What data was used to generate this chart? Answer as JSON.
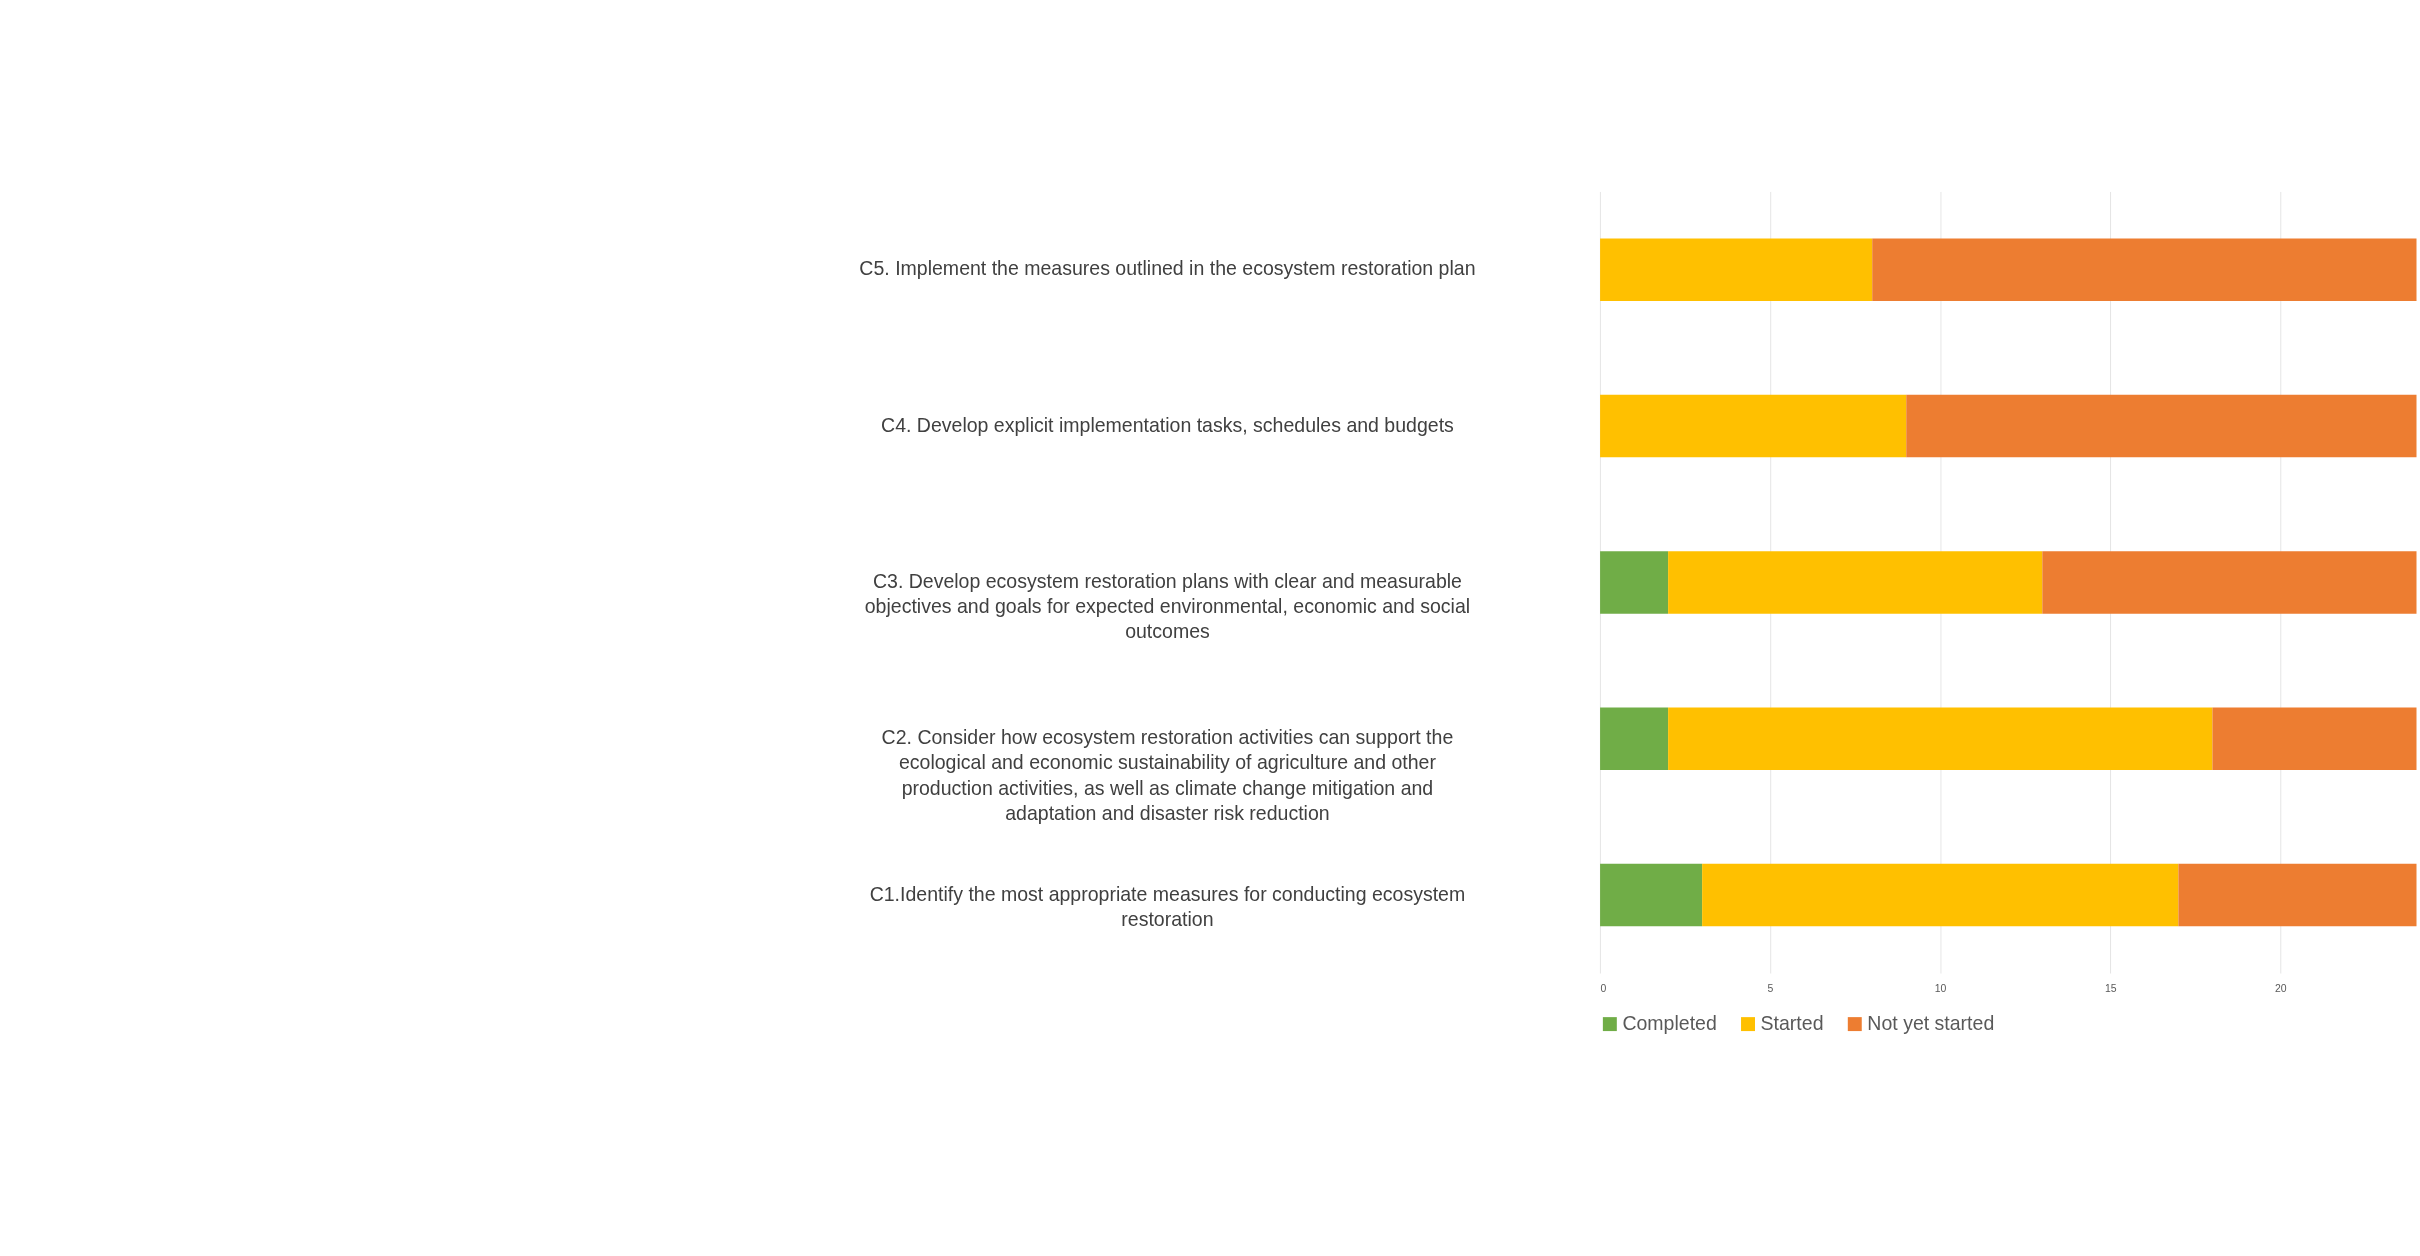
{
  "chart_data": {
    "type": "bar",
    "orientation": "horizontal",
    "stacked": true,
    "categories": [
      "C5. Implement the measures outlined in the ecosystem restoration plan",
      "C4. Develop explicit implementation tasks, schedules and budgets",
      "C3. Develop ecosystem restoration plans with clear and measurable objectives and goals for expected environmental, economic and social outcomes",
      "C2. Consider how ecosystem restoration activities can support the ecological and economic sustainability of agriculture and other production activities, as well as climate change mitigation and adaptation and disaster risk reduction",
      "C1.Identify the most appropriate measures for conducting ecosystem restoration"
    ],
    "series": [
      {
        "name": "Completed",
        "color": "#70ad47",
        "values": [
          0,
          0,
          2,
          2,
          3
        ]
      },
      {
        "name": "Started",
        "color": "#ffc000",
        "values": [
          8,
          9,
          11,
          16,
          14
        ]
      },
      {
        "name": "Not yet started",
        "color": "#ed7d31",
        "values": [
          16,
          15,
          11,
          6,
          7
        ]
      }
    ],
    "xlim": [
      0,
      24
    ],
    "xticks": [
      0,
      5,
      10,
      15,
      20
    ],
    "grid": "x",
    "legend": "bottom"
  }
}
